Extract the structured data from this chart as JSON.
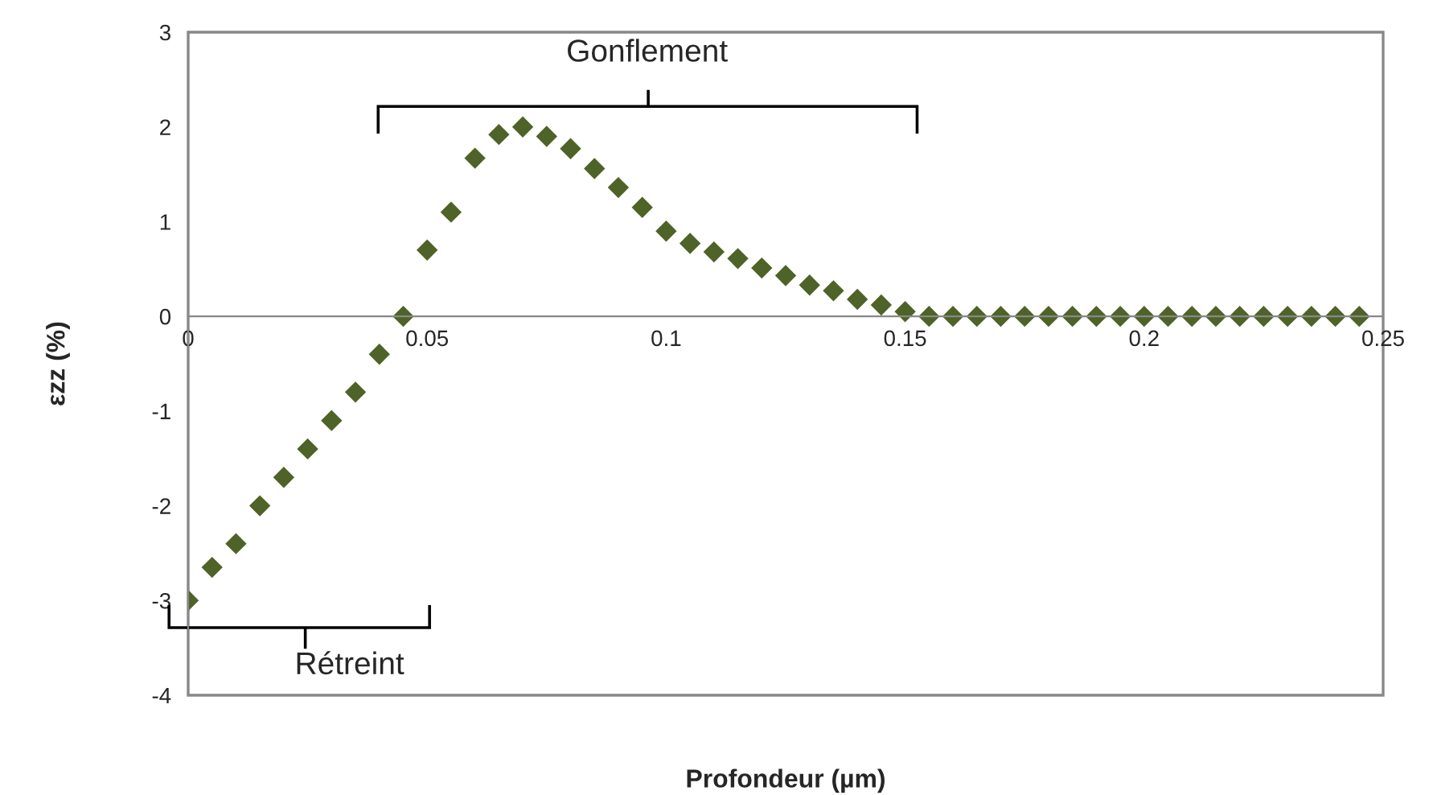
{
  "chart_data": {
    "type": "scatter",
    "xlabel": "Profondeur (µm)",
    "ylabel": "εzz (%)",
    "x": [
      0,
      0.005,
      0.01,
      0.015,
      0.02,
      0.025,
      0.03,
      0.035,
      0.04,
      0.045,
      0.05,
      0.055,
      0.06,
      0.065,
      0.07,
      0.075,
      0.08,
      0.085,
      0.09,
      0.095,
      0.1,
      0.105,
      0.11,
      0.115,
      0.12,
      0.125,
      0.13,
      0.135,
      0.14,
      0.145,
      0.15,
      0.155,
      0.16,
      0.165,
      0.17,
      0.175,
      0.18,
      0.185,
      0.19,
      0.195,
      0.2,
      0.205,
      0.21,
      0.215,
      0.22,
      0.225,
      0.23,
      0.235,
      0.24,
      0.245
    ],
    "series": [
      {
        "color": "#4f6228",
        "values": [
          -3,
          -2.65,
          -2.4,
          -2.0,
          -1.7,
          -1.4,
          -1.1,
          -0.8,
          -0.4,
          0,
          0.7,
          1.1,
          1.67,
          1.92,
          2.0,
          1.9,
          1.77,
          1.56,
          1.36,
          1.15,
          0.9,
          0.77,
          0.68,
          0.61,
          0.51,
          0.43,
          0.33,
          0.27,
          0.18,
          0.12,
          0.05,
          0,
          0,
          0,
          0,
          0,
          0,
          0,
          0,
          0,
          0,
          0,
          0,
          0,
          0,
          0,
          0,
          0,
          0,
          0
        ]
      }
    ],
    "marker": "diamond",
    "xlim": [
      0,
      0.25
    ],
    "xticks": [
      0,
      0.05,
      0.1,
      0.15,
      0.2,
      0.25
    ],
    "ylim": [
      -4,
      3
    ],
    "yticks": [
      -4,
      -3,
      -2,
      -1,
      0,
      1,
      2,
      3
    ],
    "annotations": [
      "Gonflement",
      "Rétreint"
    ]
  }
}
